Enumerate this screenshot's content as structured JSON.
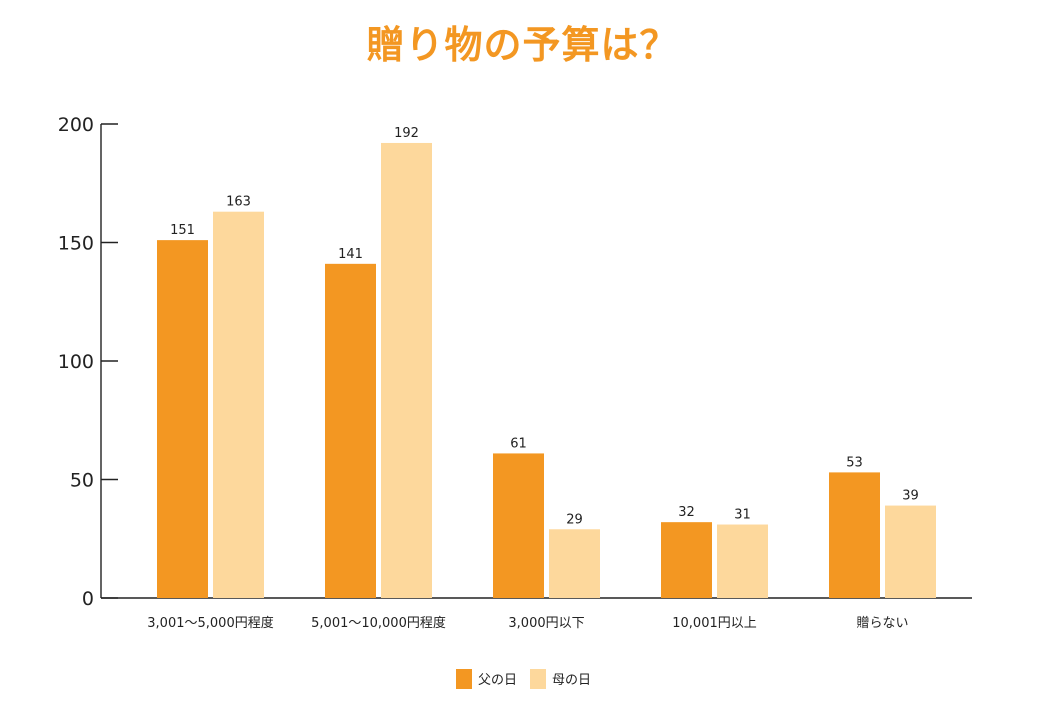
{
  "title": "贈り物の予算は？",
  "chart_data": {
    "type": "bar",
    "title": "贈り物の予算は？",
    "categories": [
      "3,001〜5,000円程度",
      "5,001〜10,000円程度",
      "3,000円以下",
      "10,001円以上",
      "贈らない"
    ],
    "series": [
      {
        "name": "父の日",
        "values": [
          151,
          141,
          61,
          32,
          53
        ],
        "color": "#F39722"
      },
      {
        "name": "母の日",
        "values": [
          163,
          192,
          29,
          31,
          39
        ],
        "color": "#FDD89C"
      }
    ],
    "ylim": [
      0,
      200
    ],
    "yticks": [
      0,
      50,
      100,
      150,
      200
    ],
    "xlabel": "",
    "ylabel": "",
    "grid": false,
    "legend": "bottom-center"
  }
}
